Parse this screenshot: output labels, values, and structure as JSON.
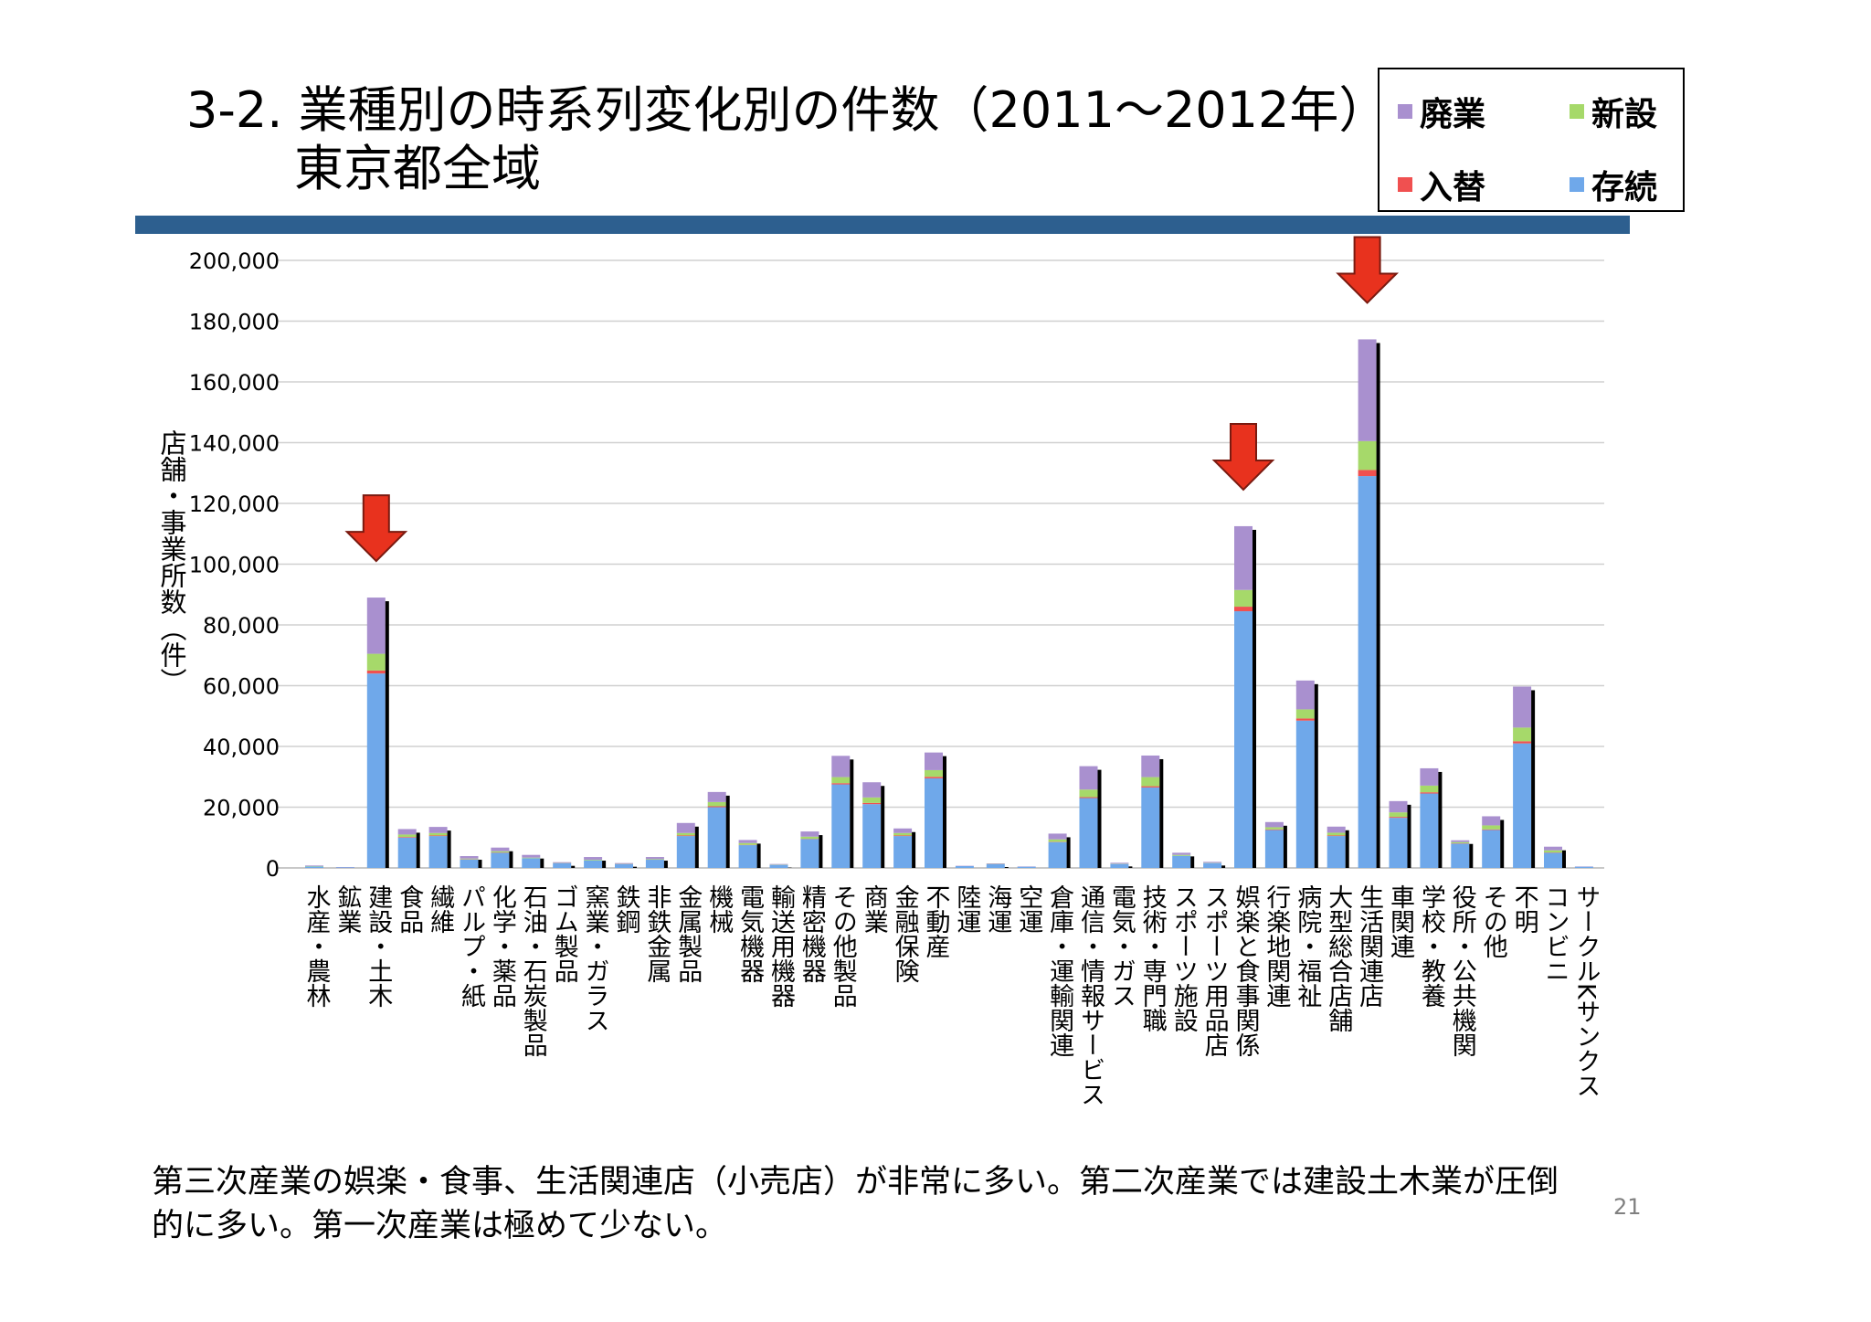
{
  "title": {
    "line1": "3-2. 業種別の時系列変化別の件数（2011～2012年）",
    "line2": "東京都全域"
  },
  "legend": [
    {
      "name": "廃業",
      "color": "#a990cf"
    },
    {
      "name": "新設",
      "color": "#a6d96a"
    },
    {
      "name": "入替",
      "color": "#f05050"
    },
    {
      "name": "存続",
      "color": "#6fa8ea"
    }
  ],
  "colors": {
    "accent_rule": "#2d5f8f",
    "arrow": "#e8321e",
    "grid": "#d0d0d0"
  },
  "chart_data": {
    "type": "bar",
    "stacked": true,
    "ylabel": "店舗・事業所数（件）",
    "xlabel": "",
    "ylim": [
      0,
      200000
    ],
    "yticks": [
      "0",
      "20,000",
      "40,000",
      "60,000",
      "80,000",
      "100,000",
      "120,000",
      "140,000",
      "160,000",
      "180,000",
      "200,000"
    ],
    "grid": true,
    "legend_position": "top-right",
    "categories": [
      "水産・農林",
      "鉱業",
      "建設・土木",
      "食品",
      "繊維",
      "パルプ・紙",
      "化学・薬品",
      "石油・石炭製品",
      "ゴム製品",
      "窯業・ガラス",
      "鉄鋼",
      "非鉄金属",
      "金属製品",
      "機械",
      "電気機器",
      "輸送用機器",
      "精密機器",
      "その他製品",
      "商業",
      "金融保険",
      "不動産",
      "陸運",
      "海運",
      "空運",
      "倉庫・運輸関連",
      "通信・情報サービス",
      "電気・ガス",
      "技術・専門職",
      "スポーツ施設",
      "スポーツ用品店",
      "娯楽と食事関係",
      "行楽地関連",
      "病院・福祉",
      "大型総合店舗",
      "生活関連店",
      "車関連",
      "学校・教養",
      "役所・公共機関",
      "その他",
      "不明",
      "コンビニ",
      "サークルKサンクス"
    ],
    "series": [
      {
        "name": "存続",
        "values": [
          500,
          200,
          64000,
          10000,
          10500,
          2800,
          5000,
          3200,
          1500,
          2500,
          1200,
          2700,
          10500,
          20000,
          7500,
          1000,
          9500,
          27500,
          21000,
          10500,
          29500,
          600,
          1200,
          400,
          8500,
          23000,
          1300,
          26500,
          4000,
          1600,
          84500,
          12500,
          48500,
          10500,
          129000,
          16500,
          24500,
          8000,
          12500,
          41000,
          5000,
          400
        ]
      },
      {
        "name": "入替",
        "values": [
          0,
          0,
          1000,
          200,
          200,
          100,
          100,
          0,
          0,
          0,
          0,
          0,
          200,
          300,
          100,
          0,
          100,
          400,
          400,
          200,
          500,
          0,
          0,
          0,
          100,
          300,
          0,
          400,
          0,
          0,
          1500,
          200,
          700,
          200,
          2000,
          300,
          400,
          100,
          200,
          700,
          100,
          0
        ]
      },
      {
        "name": "新設",
        "values": [
          100,
          0,
          5500,
          800,
          800,
          200,
          400,
          200,
          100,
          200,
          100,
          200,
          800,
          1400,
          600,
          100,
          700,
          2000,
          1800,
          800,
          2200,
          0,
          100,
          0,
          800,
          2500,
          100,
          3000,
          300,
          100,
          5500,
          700,
          3000,
          900,
          9500,
          1500,
          2200,
          400,
          1300,
          4500,
          700,
          0
        ]
      },
      {
        "name": "廃業",
        "values": [
          200,
          100,
          18500,
          1800,
          2000,
          800,
          1200,
          900,
          300,
          900,
          300,
          700,
          3300,
          3300,
          1000,
          200,
          1700,
          7000,
          5000,
          1500,
          5800,
          100,
          200,
          100,
          1900,
          7700,
          300,
          7100,
          700,
          300,
          21000,
          1700,
          9500,
          2000,
          33500,
          3700,
          5700,
          600,
          3000,
          13500,
          1200,
          100
        ]
      }
    ]
  },
  "annotations": {
    "arrows_at": [
      "建設・土木",
      "娯楽と食事関係",
      "生活関連店"
    ]
  },
  "footer": {
    "text": "第三次産業の娯楽・食事、生活関連店（小売店）が非常に多い。第二次産業では建設土木業が圧倒的に多い。第一次産業は極めて少ない。"
  },
  "page_number": "21"
}
